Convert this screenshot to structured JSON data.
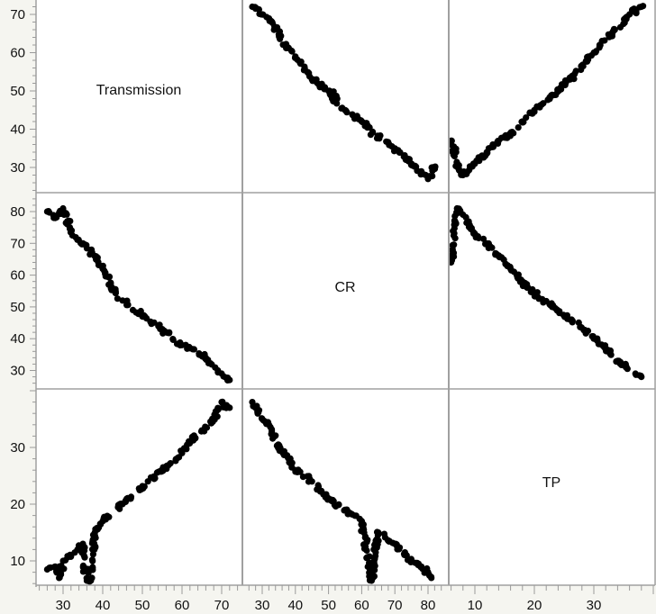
{
  "chart_data": {
    "type": "scatter",
    "subtype": "scatterplot-matrix",
    "title": "",
    "variables": [
      "Transmission",
      "CR",
      "TP"
    ],
    "axes": {
      "Transmission": {
        "range": [
          23,
          75
        ],
        "ticks": [
          30,
          40,
          50,
          60,
          70
        ]
      },
      "CR": {
        "range": [
          24,
          86
        ],
        "ticks": [
          30,
          40,
          50,
          60,
          70,
          80
        ]
      },
      "TP": {
        "range": [
          5.6,
          40
        ],
        "ticks": [
          10,
          20,
          30
        ]
      }
    },
    "panels": [
      {
        "row": "Transmission",
        "col": "CR",
        "relationship": "negative, near-linear",
        "points_approx": [
          [
            27,
            72
          ],
          [
            30,
            70
          ],
          [
            33,
            68
          ],
          [
            37,
            62
          ],
          [
            40,
            59
          ],
          [
            45,
            53
          ],
          [
            50,
            50
          ],
          [
            55,
            45
          ],
          [
            60,
            42
          ],
          [
            65,
            38
          ],
          [
            70,
            35
          ],
          [
            75,
            31
          ],
          [
            78,
            29
          ],
          [
            80,
            27
          ],
          [
            82,
            30
          ]
        ]
      },
      {
        "row": "Transmission",
        "col": "TP",
        "relationship": "positive, near-linear",
        "points_approx": [
          [
            6,
            37
          ],
          [
            7,
            31
          ],
          [
            8,
            28
          ],
          [
            10,
            31
          ],
          [
            12,
            34
          ],
          [
            14,
            37
          ],
          [
            16,
            39
          ],
          [
            18,
            42
          ],
          [
            20,
            45
          ],
          [
            23,
            49
          ],
          [
            26,
            53
          ],
          [
            30,
            60
          ],
          [
            33,
            65
          ],
          [
            36,
            70
          ],
          [
            38,
            72
          ]
        ]
      },
      {
        "row": "CR",
        "col": "Transmission",
        "relationship": "negative, near-linear",
        "points_approx": [
          [
            26,
            80
          ],
          [
            28,
            78
          ],
          [
            30,
            81
          ],
          [
            32,
            74
          ],
          [
            35,
            70
          ],
          [
            38,
            66
          ],
          [
            40,
            62
          ],
          [
            42,
            57
          ],
          [
            45,
            52
          ],
          [
            50,
            47
          ],
          [
            55,
            43
          ],
          [
            60,
            38
          ],
          [
            62,
            37
          ],
          [
            66,
            34
          ],
          [
            70,
            29
          ],
          [
            72,
            27
          ]
        ]
      },
      {
        "row": "CR",
        "col": "TP",
        "relationship": "negative, slightly curved",
        "points_approx": [
          [
            6,
            64
          ],
          [
            7,
            81
          ],
          [
            8,
            79
          ],
          [
            10,
            73
          ],
          [
            12,
            70
          ],
          [
            14,
            66
          ],
          [
            16,
            62
          ],
          [
            18,
            58
          ],
          [
            20,
            54
          ],
          [
            23,
            50
          ],
          [
            26,
            46
          ],
          [
            30,
            40
          ],
          [
            32,
            37
          ],
          [
            34,
            33
          ],
          [
            37,
            29
          ],
          [
            38,
            28
          ]
        ]
      },
      {
        "row": "TP",
        "col": "Transmission",
        "relationship": "positive, near-linear",
        "points_approx": [
          [
            26,
            8.5
          ],
          [
            28,
            9
          ],
          [
            29,
            7
          ],
          [
            30,
            10
          ],
          [
            32,
            11
          ],
          [
            35,
            13
          ],
          [
            36,
            6.5
          ],
          [
            37,
            6.5
          ],
          [
            38,
            15
          ],
          [
            40,
            17
          ],
          [
            45,
            20
          ],
          [
            50,
            23
          ],
          [
            55,
            26
          ],
          [
            60,
            29
          ],
          [
            62,
            31
          ],
          [
            65,
            33
          ],
          [
            68,
            35
          ],
          [
            70,
            38
          ],
          [
            72,
            37
          ]
        ]
      },
      {
        "row": "TP",
        "col": "CR",
        "relationship": "negative, curved",
        "points_approx": [
          [
            27,
            38
          ],
          [
            28,
            37
          ],
          [
            30,
            35
          ],
          [
            32,
            34
          ],
          [
            35,
            30
          ],
          [
            38,
            28
          ],
          [
            40,
            26
          ],
          [
            45,
            24
          ],
          [
            50,
            21
          ],
          [
            55,
            19
          ],
          [
            60,
            17
          ],
          [
            63,
            6.5
          ],
          [
            65,
            15
          ],
          [
            70,
            13
          ],
          [
            75,
            10
          ],
          [
            78,
            9
          ],
          [
            80,
            8
          ],
          [
            81,
            7
          ]
        ]
      }
    ],
    "grid": false,
    "legend": null
  },
  "diagonal_labels": [
    "Transmission",
    "CR",
    "TP"
  ],
  "style": {
    "point_color": "#000000",
    "panel_border": "#a0a0a0",
    "panel_bg": "#ffffff",
    "page_bg": "#f5f5f0"
  }
}
